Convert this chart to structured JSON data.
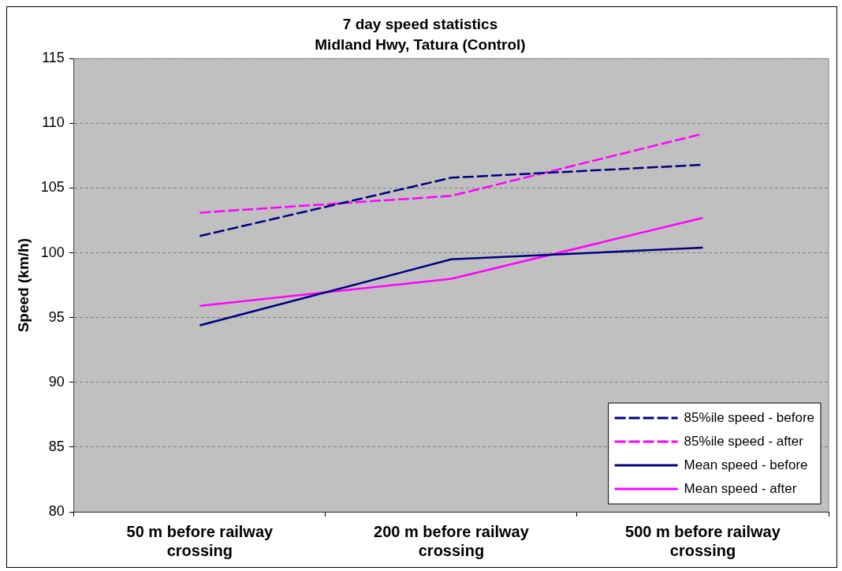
{
  "chart_data": {
    "type": "line",
    "title": "7 day speed statistics",
    "subtitle": "Midland Hwy, Tatura (Control)",
    "ylabel": "Speed (km/h)",
    "categories": [
      "50 m before railway crossing",
      "200 m before railway crossing",
      "500 m before railway crossing"
    ],
    "series": [
      {
        "name": "85%ile speed - before",
        "color": "#000080",
        "line_style": "dashed",
        "values": [
          101.3,
          105.8,
          106.8
        ]
      },
      {
        "name": "85%ile speed - after",
        "color": "#ff00ff",
        "line_style": "dashed",
        "values": [
          103.1,
          104.4,
          109.2
        ]
      },
      {
        "name": "Mean speed - before",
        "color": "#000080",
        "line_style": "solid",
        "values": [
          94.4,
          99.5,
          100.4
        ]
      },
      {
        "name": "Mean speed - after",
        "color": "#ff00ff",
        "line_style": "solid",
        "values": [
          95.9,
          98.0,
          102.7
        ]
      }
    ],
    "ylim": [
      80,
      115
    ],
    "yticks": [
      80,
      85,
      90,
      95,
      100,
      105,
      110,
      115
    ],
    "grid": "y",
    "legend": "bottom right",
    "marker": "none"
  }
}
